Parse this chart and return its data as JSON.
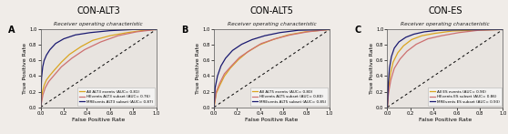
{
  "panels": [
    {
      "label": "A",
      "title": "CON-ALT3",
      "subtitle": "Receiver operating characteristic",
      "legend": [
        {
          "text": "All ALT3 events (AUC= 0.81)",
          "color": "#DAA520"
        },
        {
          "text": "HEvents ALT3 subset (AUC= 0.76)",
          "color": "#CD7070"
        },
        {
          "text": "MREvents ALT3 subset (AUC= 0.87)",
          "color": "#191970"
        }
      ],
      "curves": [
        {
          "color": "#DAA520",
          "points_x": [
            0.0,
            0.015,
            0.03,
            0.05,
            0.08,
            0.12,
            0.18,
            0.25,
            0.35,
            0.45,
            0.6,
            0.75,
            0.9,
            1.0
          ],
          "points_y": [
            0.0,
            0.2,
            0.28,
            0.35,
            0.41,
            0.48,
            0.58,
            0.68,
            0.78,
            0.86,
            0.92,
            0.96,
            0.99,
            1.0
          ]
        },
        {
          "color": "#CD7070",
          "points_x": [
            0.0,
            0.02,
            0.04,
            0.07,
            0.11,
            0.18,
            0.27,
            0.38,
            0.52,
            0.67,
            0.83,
            1.0
          ],
          "points_y": [
            0.0,
            0.16,
            0.25,
            0.33,
            0.4,
            0.52,
            0.63,
            0.74,
            0.84,
            0.92,
            0.97,
            1.0
          ]
        },
        {
          "color": "#191970",
          "points_x": [
            0.0,
            0.008,
            0.018,
            0.03,
            0.05,
            0.08,
            0.13,
            0.2,
            0.3,
            0.43,
            0.6,
            0.8,
            1.0
          ],
          "points_y": [
            0.0,
            0.38,
            0.52,
            0.6,
            0.67,
            0.74,
            0.82,
            0.88,
            0.93,
            0.96,
            0.985,
            1.0,
            1.0
          ]
        }
      ]
    },
    {
      "label": "B",
      "title": "CON-ALT5",
      "subtitle": "Receiver operating characteristic",
      "legend": [
        {
          "text": "All ALT5 events (AUC= 0.80)",
          "color": "#DAA520"
        },
        {
          "text": "HEvents ALT5 subset (AUC= 0.80)",
          "color": "#CD7070"
        },
        {
          "text": "MREvents ALT5 subset (AUC= 0.85)",
          "color": "#191970"
        }
      ],
      "curves": [
        {
          "color": "#DAA520",
          "points_x": [
            0.0,
            0.02,
            0.05,
            0.09,
            0.14,
            0.21,
            0.29,
            0.39,
            0.51,
            0.64,
            0.79,
            1.0
          ],
          "points_y": [
            0.0,
            0.18,
            0.28,
            0.4,
            0.5,
            0.61,
            0.71,
            0.8,
            0.87,
            0.93,
            0.97,
            1.0
          ]
        },
        {
          "color": "#CD7070",
          "points_x": [
            0.0,
            0.02,
            0.05,
            0.09,
            0.15,
            0.22,
            0.31,
            0.41,
            0.53,
            0.66,
            0.81,
            1.0
          ],
          "points_y": [
            0.0,
            0.2,
            0.31,
            0.43,
            0.53,
            0.64,
            0.73,
            0.82,
            0.88,
            0.93,
            0.97,
            1.0
          ]
        },
        {
          "color": "#191970",
          "points_x": [
            0.0,
            0.01,
            0.03,
            0.06,
            0.1,
            0.16,
            0.24,
            0.33,
            0.44,
            0.57,
            0.73,
            1.0
          ],
          "points_y": [
            0.0,
            0.25,
            0.4,
            0.53,
            0.63,
            0.73,
            0.81,
            0.87,
            0.92,
            0.96,
            0.99,
            1.0
          ]
        }
      ]
    },
    {
      "label": "C",
      "title": "CON-ES",
      "subtitle": "Receiver operating characteristic",
      "legend": [
        {
          "text": "All ES events (AUC= 0.90)",
          "color": "#DAA520"
        },
        {
          "text": "HEvents ES subset (AUC= 0.86)",
          "color": "#CD7070"
        },
        {
          "text": "MREvents ES subset (AUC= 0.93)",
          "color": "#191970"
        }
      ],
      "curves": [
        {
          "color": "#DAA520",
          "points_x": [
            0.0,
            0.01,
            0.025,
            0.05,
            0.09,
            0.14,
            0.21,
            0.3,
            0.41,
            0.56,
            0.74,
            1.0
          ],
          "points_y": [
            0.0,
            0.22,
            0.42,
            0.58,
            0.7,
            0.79,
            0.87,
            0.92,
            0.95,
            0.98,
            0.99,
            1.0
          ]
        },
        {
          "color": "#CD7070",
          "points_x": [
            0.0,
            0.01,
            0.03,
            0.06,
            0.11,
            0.17,
            0.25,
            0.35,
            0.47,
            0.62,
            0.79,
            1.0
          ],
          "points_y": [
            0.0,
            0.18,
            0.35,
            0.5,
            0.62,
            0.72,
            0.81,
            0.88,
            0.92,
            0.96,
            0.99,
            1.0
          ]
        },
        {
          "color": "#191970",
          "points_x": [
            0.0,
            0.008,
            0.018,
            0.035,
            0.06,
            0.1,
            0.16,
            0.23,
            0.32,
            0.44,
            0.61,
            1.0
          ],
          "points_y": [
            0.0,
            0.3,
            0.5,
            0.65,
            0.76,
            0.84,
            0.9,
            0.94,
            0.97,
            0.99,
            0.995,
            1.0
          ]
        }
      ]
    }
  ],
  "xlabel": "False Positive Rate",
  "ylabel": "True Positive Rate",
  "fig_facecolor": "#f0ece8",
  "axes_facecolor": "#e8e4e0"
}
